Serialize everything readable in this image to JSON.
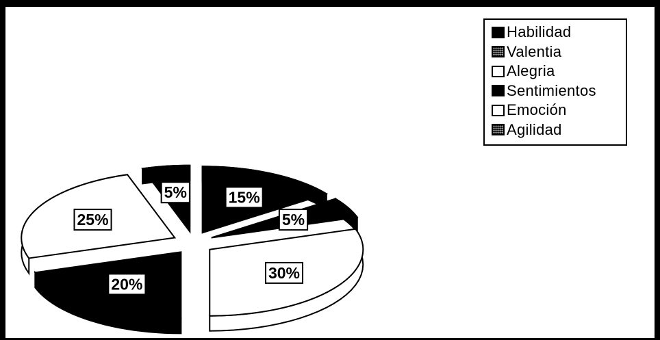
{
  "chart_data": {
    "type": "pie",
    "style": "3d-exploded",
    "categories": [
      "Habilidad",
      "Valentia",
      "Alegria",
      "Sentimientos",
      "Emoción",
      "Agilidad"
    ],
    "values": [
      15,
      5,
      30,
      20,
      25,
      5
    ],
    "labels": [
      "15%",
      "5%",
      "30%",
      "20%",
      "25%",
      "5%"
    ],
    "legend_position": "top-right",
    "legend": [
      {
        "label": "Habilidad",
        "swatch": "dark"
      },
      {
        "label": "Valentia",
        "swatch": "pattern"
      },
      {
        "label": "Alegria",
        "swatch": "white"
      },
      {
        "label": "Sentimientos",
        "swatch": "dark"
      },
      {
        "label": "Emoción",
        "swatch": "white"
      },
      {
        "label": "Agilidad",
        "swatch": "pattern"
      }
    ]
  }
}
